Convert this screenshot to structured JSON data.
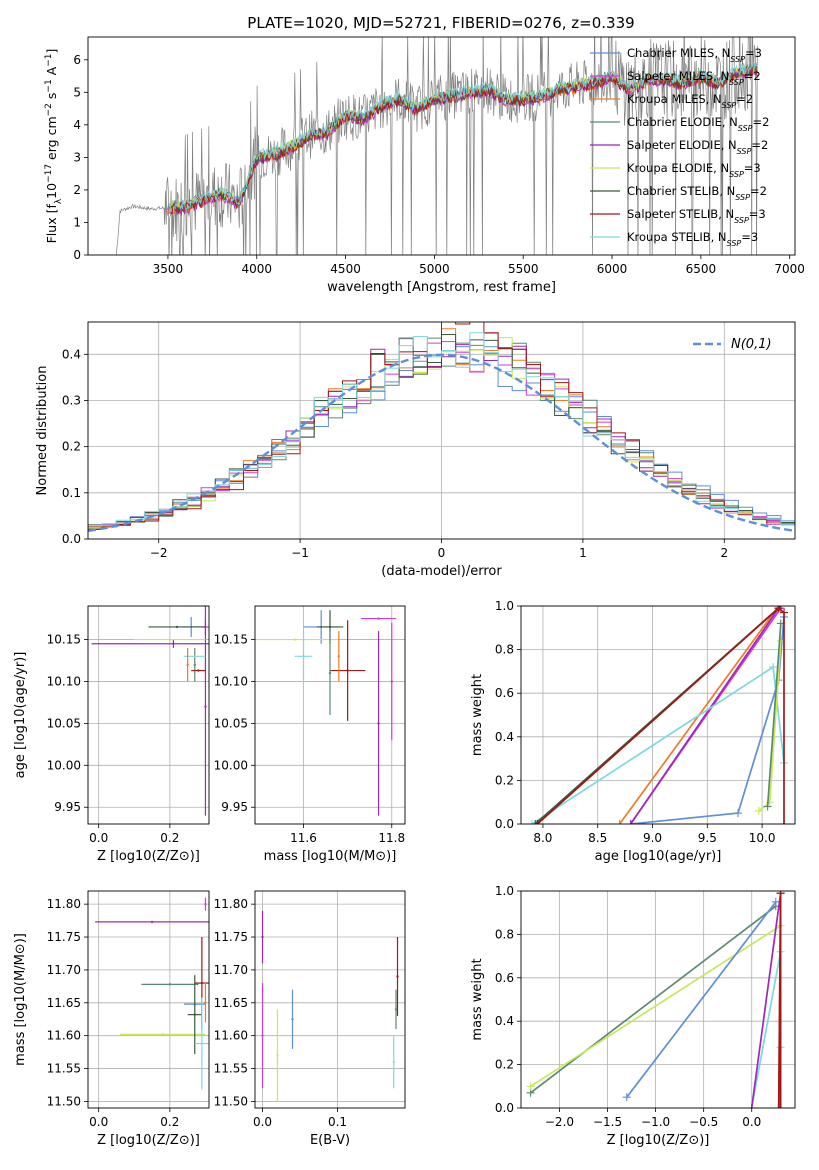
{
  "figure_title": "PLATE=1020, MJD=52721, FIBERID=0276, z=0.339",
  "chart_data": [
    {
      "id": "spectrum",
      "type": "line",
      "xlabel": "wavelength [Angstrom, rest frame]",
      "ylabel": "Flux [fλ10⁻¹⁷ erg cm⁻² s⁻¹ A⁻¹]",
      "xlim": [
        3050,
        7030
      ],
      "ylim": [
        0,
        6.7
      ],
      "xticks": [
        3500,
        4000,
        4500,
        5000,
        5500,
        6000,
        6500,
        7000
      ],
      "yticks": [
        0,
        1,
        2,
        3,
        4,
        5,
        6
      ],
      "grid": false,
      "legend_position": "upper-right",
      "data_x": [
        3210,
        3230,
        3300,
        3400,
        3500,
        3600,
        3700,
        3800,
        3900,
        4000,
        4100,
        4200,
        4300,
        4400,
        4500,
        4600,
        4700,
        4800,
        4900,
        5000,
        5100,
        5200,
        5300,
        5400,
        5500,
        5600,
        5700,
        5800,
        5900,
        6000,
        6100,
        6200,
        6300,
        6400,
        6500,
        6600,
        6700,
        6800
      ],
      "data_y": [
        0,
        1.35,
        1.5,
        1.42,
        1.45,
        1.5,
        1.7,
        1.9,
        1.6,
        3.0,
        3.1,
        3.35,
        3.7,
        3.8,
        4.3,
        4.2,
        4.6,
        4.8,
        4.5,
        4.8,
        4.9,
        5.0,
        5.1,
        4.8,
        4.8,
        4.9,
        5.1,
        5.2,
        5.3,
        5.5,
        5.1,
        5.4,
        5.4,
        5.3,
        5.5,
        5.3,
        5.6,
        5.7
      ],
      "model_offsets": [
        0,
        -0.03,
        -0.06,
        0.04,
        -0.08,
        0.03,
        -0.02,
        -0.05,
        0.06
      ],
      "series": [
        {
          "name": "Chabrier MILES, N_SSP=3",
          "color": "#5e8fd8"
        },
        {
          "name": "Salpeter MILES, N_SSP=2",
          "color": "#d63ad6"
        },
        {
          "name": "Kroupa MILES, N_SSP=2",
          "color": "#f07a24"
        },
        {
          "name": "Chabrier ELODIE, N_SSP=2",
          "color": "#5b8a72"
        },
        {
          "name": "Salpeter ELODIE, N_SSP=2",
          "color": "#9d28b8"
        },
        {
          "name": "Kroupa ELODIE, N_SSP=3",
          "color": "#c8e85a"
        },
        {
          "name": "Chabrier STELIB, N_SSP=2",
          "color": "#3b5b3b"
        },
        {
          "name": "Salpeter STELIB, N_SSP=3",
          "color": "#a01818"
        },
        {
          "name": "Kroupa STELIB, N_SSP=3",
          "color": "#7fd8df"
        }
      ],
      "legend": [
        {
          "label": "Chabrier MILES, N",
          "sub": "SSP",
          "tail": "=3"
        },
        {
          "label": "Salpeter MILES, N",
          "sub": "SSP",
          "tail": "=2"
        },
        {
          "label": "Kroupa MILES, N",
          "sub": "SSP",
          "tail": "=2"
        },
        {
          "label": "Chabrier ELODIE, N",
          "sub": "SSP",
          "tail": "=2"
        },
        {
          "label": "Salpeter ELODIE, N",
          "sub": "SSP",
          "tail": "=2"
        },
        {
          "label": "Kroupa ELODIE, N",
          "sub": "SSP",
          "tail": "=3"
        },
        {
          "label": "Chabrier STELIB, N",
          "sub": "SSP",
          "tail": "=2"
        },
        {
          "label": "Salpeter STELIB, N",
          "sub": "SSP",
          "tail": "=3"
        },
        {
          "label": "Kroupa STELIB, N",
          "sub": "SSP",
          "tail": "=3"
        }
      ]
    },
    {
      "id": "residuals",
      "type": "histogram",
      "xlabel": "(data-model)/error",
      "ylabel": "Normed distribution",
      "xlim": [
        -2.5,
        2.5
      ],
      "ylim": [
        0,
        0.47
      ],
      "xticks": [
        -2,
        -1,
        0,
        1,
        2
      ],
      "yticks": [
        0.0,
        0.1,
        0.2,
        0.3,
        0.4
      ],
      "grid": true,
      "legend": "N(0,1)",
      "reference_curve": {
        "type": "normal",
        "mean": 0,
        "sigma": 1,
        "color": "#5e8fd8",
        "style": "dashed"
      },
      "bin_width": 0.1,
      "bins_from": -2.5,
      "bins_to": 2.5
    },
    {
      "id": "age-vs-Z",
      "type": "errorbar",
      "xlabel": "Z [log10(Z/Z⊙)]",
      "ylabel": "age  [log10(age/yr)]",
      "xlim": [
        -0.03,
        0.31
      ],
      "ylim": [
        9.93,
        10.19
      ],
      "xticks": [
        0.0,
        0.2
      ],
      "yticks": [
        9.95,
        10.0,
        10.05,
        10.1,
        10.15
      ],
      "points": [
        {
          "c": "#5e8fd8",
          "x": 0.26,
          "y": 10.165,
          "xe": 0.03,
          "ye": 0.012
        },
        {
          "c": "#d63ad6",
          "x": 0.3,
          "y": 10.165,
          "xe": 0.01,
          "ye": 0.01
        },
        {
          "c": "#9d28b8",
          "x": 0.21,
          "y": 10.145,
          "xe": 0.23,
          "ye": 0.005
        },
        {
          "c": "#9d28b8",
          "x": 0.3,
          "y": 10.07,
          "xe": 0.0,
          "ye": 0.13
        },
        {
          "c": "#3b5b3b",
          "x": 0.22,
          "y": 10.165,
          "xe": 0.08,
          "ye": 0.0
        },
        {
          "c": "#c8e85a",
          "x": 0.2,
          "y": 10.15,
          "xe": 0.1,
          "ye": 0.0
        },
        {
          "c": "#5b8a72",
          "x": 0.27,
          "y": 10.12,
          "xe": 0.0,
          "ye": 0.02
        },
        {
          "c": "#a01818",
          "x": 0.28,
          "y": 10.113,
          "xe": 0.02,
          "ye": 0.0
        },
        {
          "c": "#7fd8df",
          "x": 0.27,
          "y": 10.13,
          "xe": 0.03,
          "ye": 0.0
        },
        {
          "c": "#f07a24",
          "x": 0.25,
          "y": 10.12,
          "xe": 0.0,
          "ye": 0.02
        }
      ]
    },
    {
      "id": "age-vs-mass",
      "type": "errorbar",
      "xlabel": "mass [log10(M/M⊙)]",
      "ylabel": "",
      "xlim": [
        11.49,
        11.83
      ],
      "ylim": [
        9.93,
        10.19
      ],
      "xticks": [
        11.6,
        11.8
      ],
      "yticks": [
        9.95,
        10.0,
        10.05,
        10.1,
        10.15
      ],
      "points": [
        {
          "c": "#5e8fd8",
          "x": 11.64,
          "y": 10.165,
          "xe": 0.04,
          "ye": 0.02
        },
        {
          "c": "#d63ad6",
          "x": 11.77,
          "y": 10.175,
          "xe": 0.04,
          "ye": 0.0
        },
        {
          "c": "#d63ad6",
          "x": 11.8,
          "y": 10.1,
          "xe": 0.0,
          "ye": 0.07
        },
        {
          "c": "#9d28b8",
          "x": 11.77,
          "y": 10.05,
          "xe": 0.0,
          "ye": 0.11
        },
        {
          "c": "#c8e85a",
          "x": 11.58,
          "y": 10.15,
          "xe": 0.1,
          "ye": 0.0
        },
        {
          "c": "#3b5b3b",
          "x": 11.66,
          "y": 10.165,
          "xe": 0.03,
          "ye": 0.02
        },
        {
          "c": "#a01818",
          "x": 11.7,
          "y": 10.113,
          "xe": 0.04,
          "ye": 0.06
        },
        {
          "c": "#7fd8df",
          "x": 11.6,
          "y": 10.13,
          "xe": 0.02,
          "ye": 0.03
        },
        {
          "c": "#f07a24",
          "x": 11.68,
          "y": 10.13,
          "xe": 0.0,
          "ye": 0.03
        },
        {
          "c": "#5b8a72",
          "x": 11.66,
          "y": 10.11,
          "xe": 0.0,
          "ye": 0.05
        }
      ]
    },
    {
      "id": "mass-weight-vs-age",
      "type": "line",
      "xlabel": "age  [log10(age/yr)]",
      "ylabel": "mass weight",
      "xlim": [
        7.8,
        10.3
      ],
      "ylim": [
        0,
        1.0
      ],
      "xticks": [
        8.0,
        8.5,
        9.0,
        9.5,
        10.0
      ],
      "yticks": [
        0.0,
        0.2,
        0.4,
        0.6,
        0.8,
        1.0
      ],
      "grid": true,
      "lines": [
        {
          "c": "#5e8fd8",
          "x": [
            8.8,
            9.78,
            10.15,
            10.2
          ],
          "y": [
            0.0,
            0.05,
            0.66,
            0.95
          ]
        },
        {
          "c": "#f07a24",
          "x": [
            8.7,
            10.15
          ],
          "y": [
            0.0,
            1.0
          ]
        },
        {
          "c": "#d63ad6",
          "x": [
            8.8,
            10.17
          ],
          "y": [
            0.0,
            0.99
          ]
        },
        {
          "c": "#9d28b8",
          "x": [
            8.8,
            10.15
          ],
          "y": [
            0.0,
            0.99
          ]
        },
        {
          "c": "#7fd8df",
          "x": [
            7.9,
            10.1,
            10.2
          ],
          "y": [
            0.0,
            0.72,
            0.28
          ]
        },
        {
          "c": "#c8e85a",
          "x": [
            9.97,
            10.07,
            10.17
          ],
          "y": [
            0.06,
            0.1,
            0.84
          ]
        },
        {
          "c": "#5b8a72",
          "x": [
            10.05,
            10.17
          ],
          "y": [
            0.08,
            0.92
          ]
        },
        {
          "c": "#3b5b3b",
          "x": [
            7.93,
            10.17
          ],
          "y": [
            0.0,
            1.0
          ]
        },
        {
          "c": "#a01818",
          "x": [
            7.95,
            10.15,
            10.2,
            10.2
          ],
          "y": [
            0.0,
            0.99,
            0.97,
            0.0
          ]
        }
      ]
    },
    {
      "id": "mass-vs-Z",
      "type": "errorbar",
      "xlabel": "Z [log10(Z/Z⊙)]",
      "ylabel": "mass [log10(M/M⊙)]",
      "xlim": [
        -0.03,
        0.31
      ],
      "ylim": [
        11.49,
        11.82
      ],
      "xticks": [
        0.0,
        0.2
      ],
      "yticks": [
        11.5,
        11.55,
        11.6,
        11.65,
        11.7,
        11.75,
        11.8
      ],
      "points": [
        {
          "c": "#9d28b8",
          "x": 0.15,
          "y": 11.773,
          "xe": 0.16,
          "ye": 0.0
        },
        {
          "c": "#d63ad6",
          "x": 0.3,
          "y": 11.8,
          "xe": 0.0,
          "ye": 0.01
        },
        {
          "c": "#c8e85a",
          "x": 0.18,
          "y": 11.602,
          "xe": 0.12,
          "ye": 0.0
        },
        {
          "c": "#5b8a72",
          "x": 0.2,
          "y": 11.678,
          "xe": 0.08,
          "ye": 0.0
        },
        {
          "c": "#5e8fd8",
          "x": 0.27,
          "y": 11.648,
          "xe": 0.03,
          "ye": 0.0
        },
        {
          "c": "#3b5b3b",
          "x": 0.27,
          "y": 11.632,
          "xe": 0.02,
          "ye": 0.06
        },
        {
          "c": "#a01818",
          "x": 0.29,
          "y": 11.68,
          "xe": 0.02,
          "ye": 0.07
        },
        {
          "c": "#7fd8df",
          "x": 0.29,
          "y": 11.588,
          "xe": 0.02,
          "ye": 0.07
        },
        {
          "c": "#f07a24",
          "x": 0.3,
          "y": 11.65,
          "xe": 0.0,
          "ye": 0.03
        }
      ]
    },
    {
      "id": "mass-vs-ebv",
      "type": "errorbar",
      "xlabel": "E(B-V)",
      "ylabel": "",
      "xlim": [
        -0.01,
        0.19
      ],
      "ylim": [
        11.49,
        11.82
      ],
      "xticks": [
        0.0,
        0.1
      ],
      "yticks": [
        11.5,
        11.55,
        11.6,
        11.65,
        11.7,
        11.75,
        11.8
      ],
      "points": [
        {
          "c": "#9d28b8",
          "x": 0.0,
          "y": 11.75,
          "xe": 0.0,
          "ye": 0.04
        },
        {
          "c": "#d63ad6",
          "x": 0.0,
          "y": 11.6,
          "xe": 0.0,
          "ye": 0.08
        },
        {
          "c": "#c8e85a",
          "x": 0.02,
          "y": 11.57,
          "xe": 0.0,
          "ye": 0.07
        },
        {
          "c": "#5e8fd8",
          "x": 0.04,
          "y": 11.625,
          "xe": 0.0,
          "ye": 0.045
        },
        {
          "c": "#a01818",
          "x": 0.18,
          "y": 11.69,
          "xe": 0.0,
          "ye": 0.06
        },
        {
          "c": "#7fd8df",
          "x": 0.175,
          "y": 11.56,
          "xe": 0.0,
          "ye": 0.04
        },
        {
          "c": "#5b8a72",
          "x": 0.178,
          "y": 11.64,
          "xe": 0.0,
          "ye": 0.03
        }
      ]
    },
    {
      "id": "mass-weight-vs-Z",
      "type": "line",
      "xlabel": "Z [log10(Z/Z⊙)]",
      "ylabel": "mass weight",
      "xlim": [
        -2.4,
        0.45
      ],
      "ylim": [
        0,
        1.0
      ],
      "xticks": [
        -2.0,
        -1.5,
        -1.0,
        -0.5,
        0.0
      ],
      "yticks": [
        0.0,
        0.2,
        0.4,
        0.6,
        0.8,
        1.0
      ],
      "grid": true,
      "lines": [
        {
          "c": "#5b8a72",
          "x": [
            -2.3,
            0.25
          ],
          "y": [
            0.07,
            0.93
          ]
        },
        {
          "c": "#c8e85a",
          "x": [
            -2.3,
            0.3
          ],
          "y": [
            0.1,
            0.84
          ]
        },
        {
          "c": "#5e8fd8",
          "x": [
            -1.3,
            0.25
          ],
          "y": [
            0.05,
            0.95
          ]
        },
        {
          "c": "#7fd8df",
          "x": [
            0.0,
            0.3,
            0.3
          ],
          "y": [
            0.0,
            0.72,
            0.28
          ]
        },
        {
          "c": "#9d28b8",
          "x": [
            0.0,
            0.3
          ],
          "y": [
            0.0,
            0.99
          ]
        },
        {
          "c": "#d63ad6",
          "x": [
            0.3,
            0.3
          ],
          "y": [
            0.0,
            0.99
          ]
        },
        {
          "c": "#f07a24",
          "x": [
            0.28,
            0.3
          ],
          "y": [
            0.0,
            1.0
          ]
        },
        {
          "c": "#a01818",
          "x": [
            0.28,
            0.3,
            0.3
          ],
          "y": [
            0.0,
            0.99,
            0.0
          ]
        }
      ]
    }
  ]
}
